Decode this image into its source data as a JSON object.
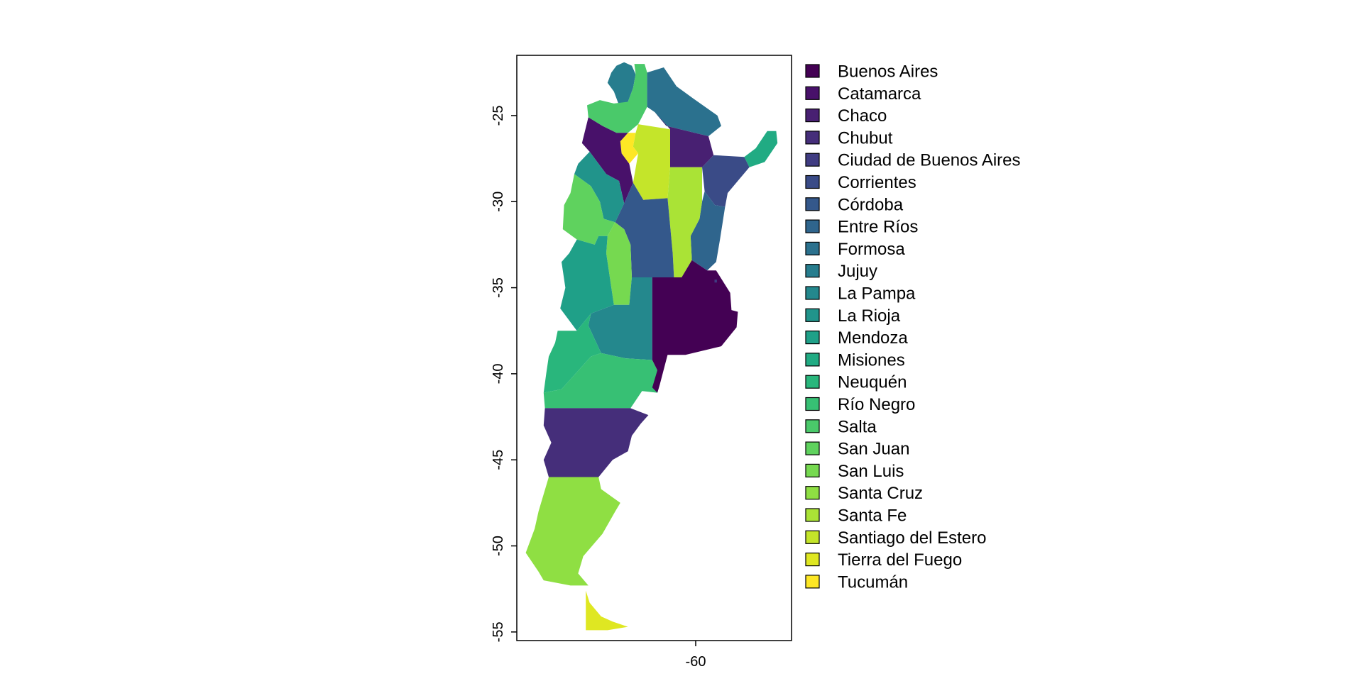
{
  "chart_data": {
    "type": "choropleth-map",
    "title": "",
    "xlabel": "",
    "ylabel": "",
    "xlim": [
      -74.0,
      -52.5
    ],
    "ylim": [
      -55.5,
      -21.5
    ],
    "x_ticks": [
      -60
    ],
    "y_ticks": [
      -25,
      -30,
      -35,
      -40,
      -45,
      -50,
      -55
    ],
    "grid": false,
    "legend_position": "right",
    "legend": [
      {
        "name": "Buenos Aires",
        "color": "#440154"
      },
      {
        "name": "Catamarca",
        "color": "#48116A"
      },
      {
        "name": "Chaco",
        "color": "#482072"
      },
      {
        "name": "Chubut",
        "color": "#452E7A"
      },
      {
        "name": "Ciudad de Buenos Aires",
        "color": "#403C82"
      },
      {
        "name": "Corrientes",
        "color": "#3A4B87"
      },
      {
        "name": "Córdoba",
        "color": "#34588B"
      },
      {
        "name": "Entre Ríos",
        "color": "#2F658D"
      },
      {
        "name": "Formosa",
        "color": "#2B718E"
      },
      {
        "name": "Jujuy",
        "color": "#277D8E"
      },
      {
        "name": "La Pampa",
        "color": "#24888D"
      },
      {
        "name": "La Rioja",
        "color": "#21948B"
      },
      {
        "name": "Mendoza",
        "color": "#1FA088"
      },
      {
        "name": "Misiones",
        "color": "#21AB83"
      },
      {
        "name": "Neuquén",
        "color": "#29B67C"
      },
      {
        "name": "Río Negro",
        "color": "#37C074"
      },
      {
        "name": "Salta",
        "color": "#4AC96A"
      },
      {
        "name": "San Juan",
        "color": "#5FD25E"
      },
      {
        "name": "San Luis",
        "color": "#76D950"
      },
      {
        "name": "Santa Cruz",
        "color": "#8FDF43"
      },
      {
        "name": "Santa Fe",
        "color": "#AAE336"
      },
      {
        "name": "Santiago del Estero",
        "color": "#C4E52A"
      },
      {
        "name": "Tierra del Fuego",
        "color": "#DFE722"
      },
      {
        "name": "Tucumán",
        "color": "#FDE725"
      }
    ]
  }
}
